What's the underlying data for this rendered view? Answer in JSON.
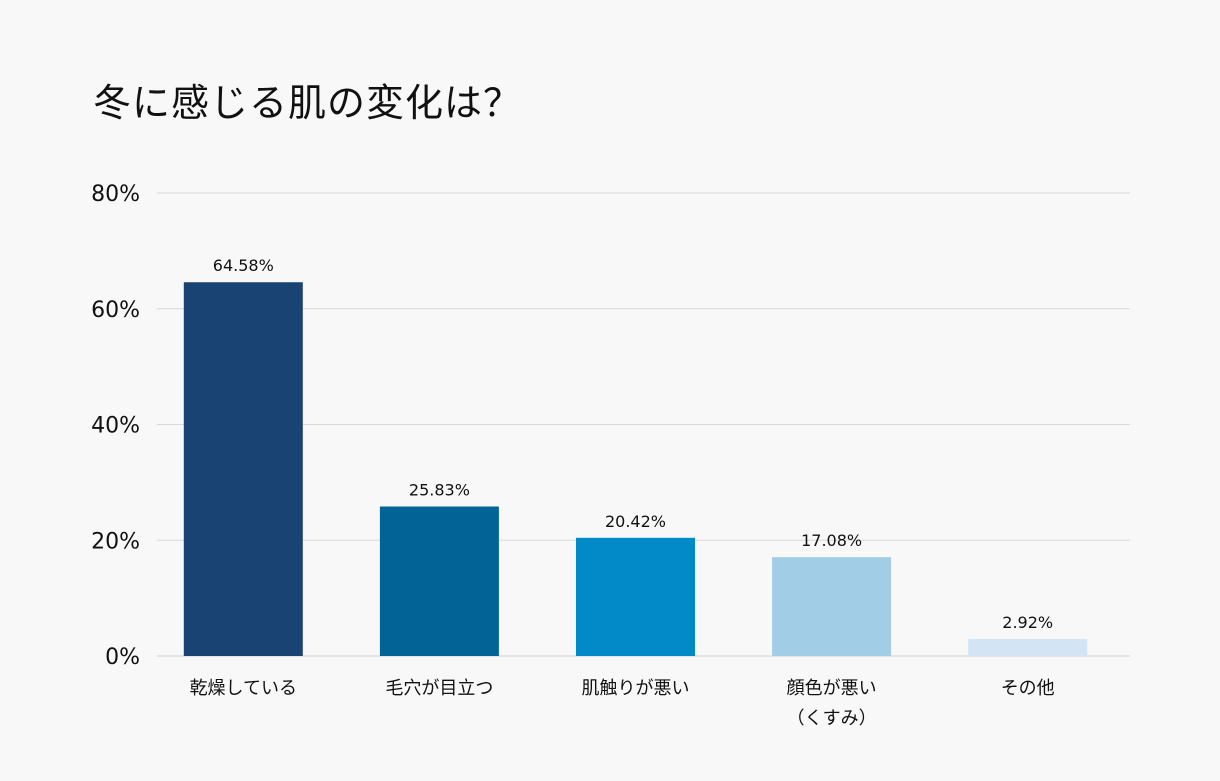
{
  "title": "冬に感じる肌の変化は？",
  "chart_data": {
    "type": "bar",
    "title": "冬に感じる肌の変化は？",
    "xlabel": "",
    "ylabel": "",
    "ylim": [
      0,
      80
    ],
    "yticks": [
      "0%",
      "20%",
      "40%",
      "60%",
      "80%"
    ],
    "ytick_values": [
      0,
      20,
      40,
      60,
      80
    ],
    "grid": true,
    "categories": [
      [
        "乾燥している"
      ],
      [
        "毛穴が目立つ"
      ],
      [
        "肌触りが悪い"
      ],
      [
        "顔色が悪い",
        "（くすみ）"
      ],
      [
        "その他"
      ]
    ],
    "values": [
      64.58,
      25.83,
      20.42,
      17.08,
      2.92
    ],
    "value_labels": [
      "64.58%",
      "25.83%",
      "20.42%",
      "17.08%",
      "2.92%"
    ],
    "colors": [
      "#184373",
      "#026496",
      "#0289c7",
      "#a2cde6",
      "#d3e5f4"
    ]
  }
}
